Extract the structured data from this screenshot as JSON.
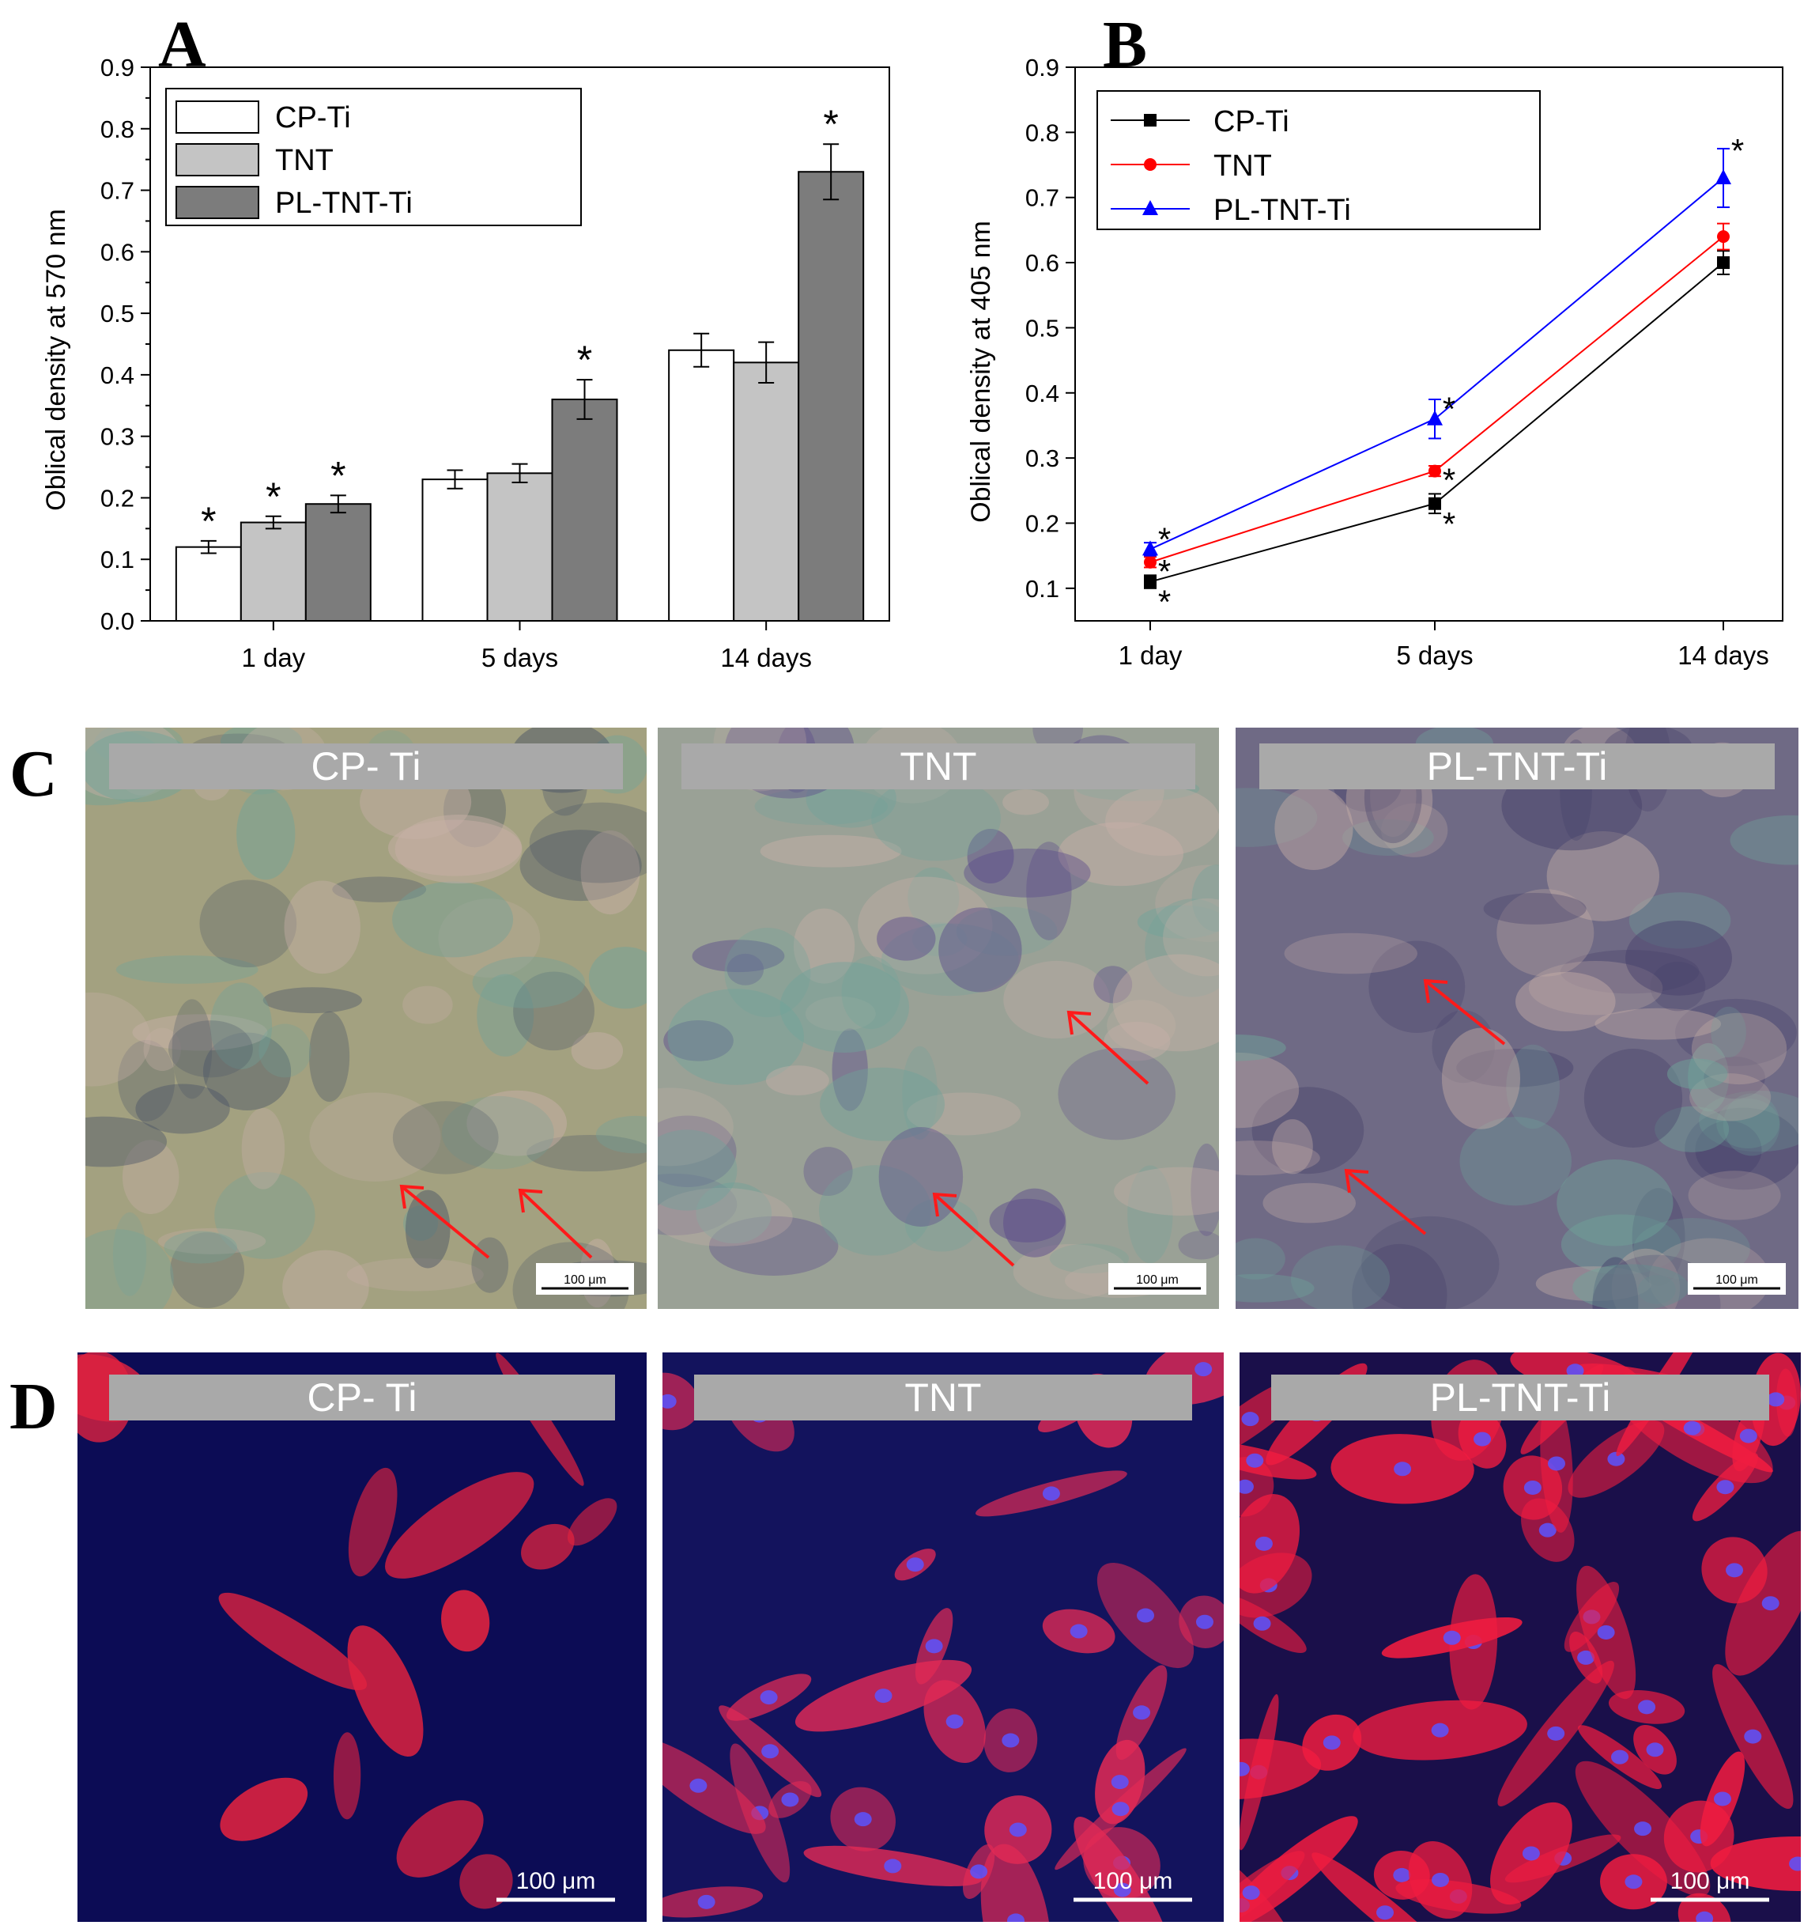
{
  "panels": {
    "A": "A",
    "B": "B",
    "C": "C",
    "D": "D"
  },
  "chart_data": [
    {
      "type": "bar",
      "panel": "A",
      "ylabel": "Oblical density at 570 nm",
      "categories": [
        "1 day",
        "5 days",
        "14 days"
      ],
      "ylim": [
        0.0,
        0.9
      ],
      "yticks": [
        "0.0",
        "0.1",
        "0.2",
        "0.3",
        "0.4",
        "0.5",
        "0.6",
        "0.7",
        "0.8",
        "0.9"
      ],
      "legend_position": "top-left",
      "series": [
        {
          "name": "CP-Ti",
          "color": "#ffffff",
          "values": [
            0.12,
            0.23,
            0.44
          ],
          "errors": [
            0.01,
            0.015,
            0.027
          ],
          "significant": [
            true,
            false,
            false
          ]
        },
        {
          "name": "TNT",
          "color": "#c4c4c4",
          "values": [
            0.16,
            0.24,
            0.42
          ],
          "errors": [
            0.01,
            0.015,
            0.033
          ],
          "significant": [
            true,
            false,
            false
          ]
        },
        {
          "name": "PL-TNT-Ti",
          "color": "#7c7c7c",
          "values": [
            0.19,
            0.36,
            0.73
          ],
          "errors": [
            0.014,
            0.032,
            0.045
          ],
          "significant": [
            true,
            true,
            true
          ]
        }
      ],
      "significance_marker": "*"
    },
    {
      "type": "line",
      "panel": "B",
      "ylabel": "Oblical density at 405 nm",
      "categories": [
        "1 day",
        "5 days",
        "14 days"
      ],
      "ylim": [
        0.05,
        0.9
      ],
      "yticks": [
        "0.1",
        "0.2",
        "0.3",
        "0.4",
        "0.5",
        "0.6",
        "0.7",
        "0.8",
        "0.9"
      ],
      "legend_position": "top-left",
      "series": [
        {
          "name": "CP-Ti",
          "color": "#000000",
          "marker": "square",
          "values": [
            0.11,
            0.23,
            0.6
          ],
          "errors": [
            0.01,
            0.015,
            0.018
          ],
          "significant": [
            true,
            true,
            false
          ]
        },
        {
          "name": "TNT",
          "color": "#ff0000",
          "marker": "circle",
          "values": [
            0.14,
            0.28,
            0.64
          ],
          "errors": [
            0.008,
            0.008,
            0.02
          ],
          "significant": [
            true,
            true,
            false
          ]
        },
        {
          "name": "PL-TNT-Ti",
          "color": "#0000ff",
          "marker": "triangle",
          "values": [
            0.16,
            0.36,
            0.73
          ],
          "errors": [
            0.01,
            0.03,
            0.045
          ],
          "significant": [
            true,
            true,
            true
          ]
        }
      ],
      "significance_marker": "*"
    }
  ],
  "micrographs_c": [
    {
      "label": "CP- Ti",
      "scale": "100 μm",
      "base": "#a3a180",
      "tint": "#4b5567"
    },
    {
      "label": "TNT",
      "scale": "100 μm",
      "base": "#9aa196",
      "tint": "#5b4a8a"
    },
    {
      "label": "PL-TNT-Ti",
      "scale": "100 μm",
      "base": "#6f6a85",
      "tint": "#45406a"
    }
  ],
  "micrographs_d": [
    {
      "label": "CP- Ti",
      "scale": "100 μm",
      "base": "#0c0c55",
      "cell": "#e0223f"
    },
    {
      "label": "TNT",
      "scale": "100 μm",
      "base": "#13135d",
      "cell": "#e22a55"
    },
    {
      "label": "PL-TNT-Ti",
      "scale": "100 μm",
      "base": "#1a0f4a",
      "cell": "#ef1c40"
    }
  ]
}
